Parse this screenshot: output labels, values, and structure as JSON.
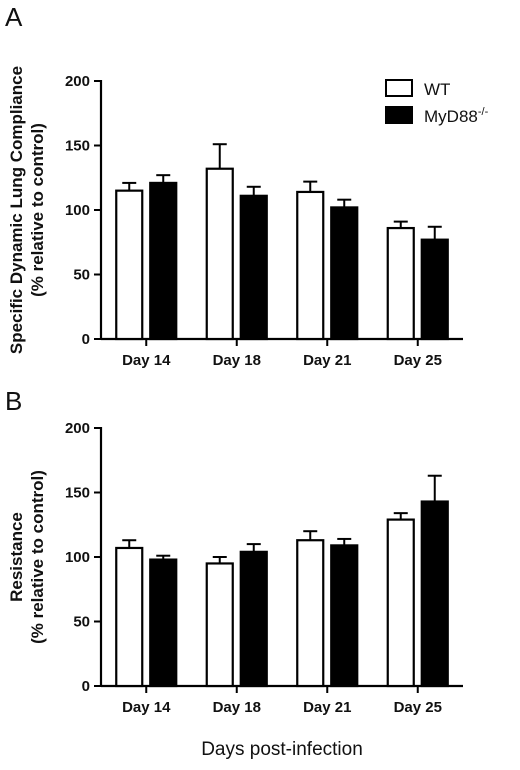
{
  "figure": {
    "xlabel": "Days post-infection"
  },
  "legend": {
    "items": [
      {
        "label": "WT",
        "label_sup": "",
        "fill": "#ffffff",
        "stroke": "#000000"
      },
      {
        "label": "MyD88",
        "label_sup": "-/-",
        "fill": "#000000",
        "stroke": "#000000"
      }
    ]
  },
  "chart_data": [
    {
      "type": "bar",
      "panel": "A",
      "categories": [
        "Day 14",
        "Day 18",
        "Day 21",
        "Day 25"
      ],
      "ylabel_lines": [
        "Specific Dynamic Lung Compliance",
        "(% relative to control)"
      ],
      "ylim": [
        0,
        200
      ],
      "yticks": [
        0,
        50,
        100,
        150,
        200
      ],
      "series": [
        {
          "name": "WT",
          "values": [
            115,
            132,
            114,
            86
          ],
          "errors": [
            6,
            19,
            8,
            5
          ]
        },
        {
          "name": "MyD88-/-",
          "values": [
            121,
            111,
            102,
            77
          ],
          "errors": [
            6,
            7,
            6,
            10
          ]
        }
      ]
    },
    {
      "type": "bar",
      "panel": "B",
      "categories": [
        "Day 14",
        "Day 18",
        "Day 21",
        "Day 25"
      ],
      "ylabel_lines": [
        "Resistance",
        "(% relative to control)"
      ],
      "ylim": [
        0,
        200
      ],
      "yticks": [
        0,
        50,
        100,
        150,
        200
      ],
      "series": [
        {
          "name": "WT",
          "values": [
            107,
            95,
            113,
            129
          ],
          "errors": [
            6,
            5,
            7,
            5
          ]
        },
        {
          "name": "MyD88-/-",
          "values": [
            98,
            104,
            109,
            143
          ],
          "errors": [
            3,
            6,
            5,
            20
          ]
        }
      ]
    }
  ]
}
